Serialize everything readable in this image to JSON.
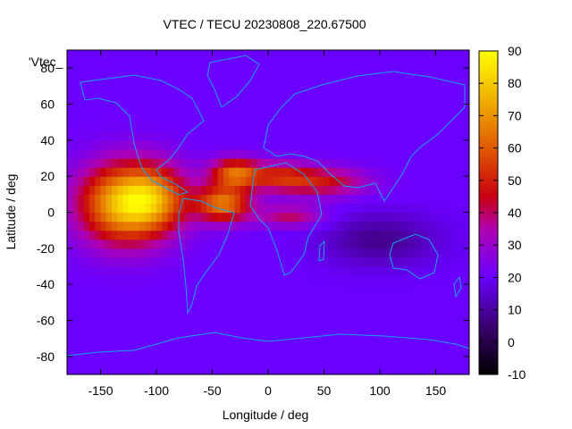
{
  "chart_data": {
    "type": "heatmap",
    "title": "VTEC / TECU 20230808_220.67500",
    "series_label": "'Vtec_",
    "xlabel": "Longitude / deg",
    "ylabel": "Latitude / deg",
    "xlim": [
      -180,
      180
    ],
    "ylim": [
      -90,
      90
    ],
    "x_ticks": [
      -150,
      -100,
      -50,
      0,
      50,
      100,
      150
    ],
    "y_ticks": [
      -80,
      -60,
      -40,
      -20,
      0,
      20,
      40,
      60,
      80
    ],
    "colorbar": {
      "range": [
        -10,
        90
      ],
      "ticks": [
        -10,
        0,
        10,
        20,
        30,
        40,
        50,
        60,
        70,
        80,
        90
      ]
    },
    "tec_blobs": [
      {
        "lon": -130,
        "lat": 5,
        "sx": 40,
        "sy": 22,
        "value": 55
      },
      {
        "lon": -100,
        "lat": 8,
        "sx": 30,
        "sy": 18,
        "value": 30
      },
      {
        "lon": -40,
        "lat": 5,
        "sx": 25,
        "sy": 10,
        "value": 45
      },
      {
        "lon": -30,
        "lat": 22,
        "sx": 22,
        "sy": 8,
        "value": 40
      },
      {
        "lon": 10,
        "lat": 20,
        "sx": 30,
        "sy": 8,
        "value": 25
      },
      {
        "lon": 50,
        "lat": 17,
        "sx": 40,
        "sy": 8,
        "value": 25
      },
      {
        "lon": 20,
        "lat": -2,
        "sx": 30,
        "sy": 6,
        "value": 20
      },
      {
        "lon": 100,
        "lat": -15,
        "sx": 50,
        "sy": 14,
        "value": -12
      }
    ],
    "background_value": 20
  }
}
